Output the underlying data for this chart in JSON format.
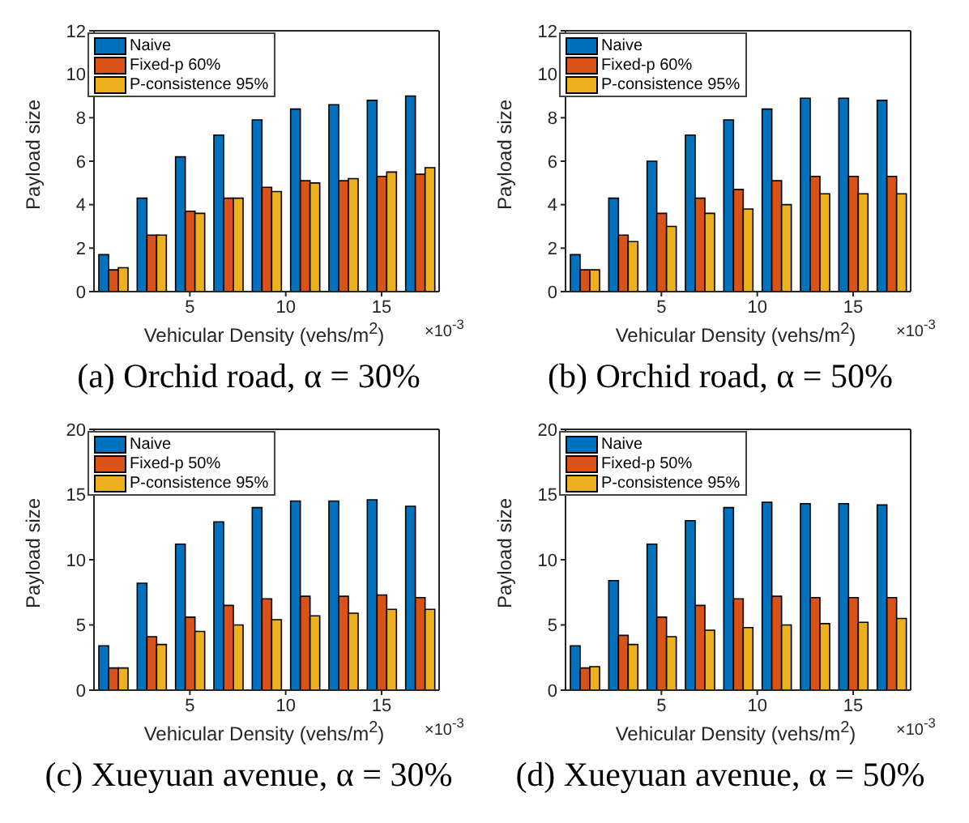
{
  "chart_data": [
    {
      "type": "bar",
      "x": [
        1,
        3,
        5,
        7,
        9,
        11,
        13,
        15,
        17
      ],
      "xlim": [
        0,
        18
      ],
      "xticks": [
        5,
        10,
        15
      ],
      "ylim": [
        0,
        12
      ],
      "yticks": [
        0,
        2,
        4,
        6,
        8,
        10,
        12
      ],
      "xlabel": "Vehicular Density (vehs/m$^{2}$)",
      "ylabel": "Payload size",
      "legend": "top left",
      "grid": false,
      "annotations": [
        "×10$^{-3}$",
        "(a) Orchid road, α = 30%"
      ],
      "series": [
        {
          "name": "Naive",
          "color": "#0072bd",
          "values": [
            1.7,
            4.3,
            6.2,
            7.2,
            7.9,
            8.4,
            8.6,
            8.8,
            9.0
          ]
        },
        {
          "name": "Fixed-p 60%",
          "color": "#d95319",
          "values": [
            1.0,
            2.6,
            3.7,
            4.3,
            4.8,
            5.1,
            5.1,
            5.3,
            5.4
          ]
        },
        {
          "name": "P-consistence 95%",
          "color": "#edb120",
          "values": [
            1.1,
            2.6,
            3.6,
            4.3,
            4.6,
            5.0,
            5.2,
            5.5,
            5.7
          ]
        }
      ]
    },
    {
      "type": "bar",
      "x": [
        1,
        3,
        5,
        7,
        9,
        11,
        13,
        15,
        17
      ],
      "xlim": [
        0,
        18
      ],
      "xticks": [
        5,
        10,
        15
      ],
      "ylim": [
        0,
        12
      ],
      "yticks": [
        0,
        2,
        4,
        6,
        8,
        10,
        12
      ],
      "xlabel": "Vehicular Density (vehs/m$^{2}$)",
      "ylabel": "Payload size",
      "legend": "top left",
      "grid": false,
      "annotations": [
        "×10$^{-3}$",
        "(b) Orchid road, α = 50%"
      ],
      "series": [
        {
          "name": "Naive",
          "color": "#0072bd",
          "values": [
            1.7,
            4.3,
            6.0,
            7.2,
            7.9,
            8.4,
            8.9,
            8.9,
            8.8
          ]
        },
        {
          "name": "Fixed-p 60%",
          "color": "#d95319",
          "values": [
            1.0,
            2.6,
            3.6,
            4.3,
            4.7,
            5.1,
            5.3,
            5.3,
            5.3
          ]
        },
        {
          "name": "P-consistence 95%",
          "color": "#edb120",
          "values": [
            1.0,
            2.3,
            3.0,
            3.6,
            3.8,
            4.0,
            4.5,
            4.5,
            4.5
          ]
        }
      ]
    },
    {
      "type": "bar",
      "x": [
        1,
        3,
        5,
        7,
        9,
        11,
        13,
        15,
        17
      ],
      "xlim": [
        0,
        18
      ],
      "xticks": [
        5,
        10,
        15
      ],
      "ylim": [
        0,
        20
      ],
      "yticks": [
        0,
        5,
        10,
        15,
        20
      ],
      "xlabel": "Vehicular Density (vehs/m$^{2}$)",
      "ylabel": "Payload size",
      "legend": "top left",
      "grid": false,
      "annotations": [
        "×10$^{-3}$",
        "(c) Xueyuan avenue, α = 30%"
      ],
      "series": [
        {
          "name": "Naive",
          "color": "#0072bd",
          "values": [
            3.4,
            8.2,
            11.2,
            12.9,
            14.0,
            14.5,
            14.5,
            14.6,
            14.1
          ]
        },
        {
          "name": "Fixed-p 50%",
          "color": "#d95319",
          "values": [
            1.7,
            4.1,
            5.6,
            6.5,
            7.0,
            7.2,
            7.2,
            7.3,
            7.1
          ]
        },
        {
          "name": "P-consistence 95%",
          "color": "#edb120",
          "values": [
            1.7,
            3.5,
            4.5,
            5.0,
            5.4,
            5.7,
            5.9,
            6.2,
            6.2
          ]
        }
      ]
    },
    {
      "type": "bar",
      "x": [
        1,
        3,
        5,
        7,
        9,
        11,
        13,
        15,
        17
      ],
      "xlim": [
        0,
        18
      ],
      "xticks": [
        5,
        10,
        15
      ],
      "ylim": [
        0,
        20
      ],
      "yticks": [
        0,
        5,
        10,
        15,
        20
      ],
      "xlabel": "Vehicular Density (vehs/m$^{2}$)",
      "ylabel": "Payload size",
      "legend": "top left",
      "grid": false,
      "annotations": [
        "×10$^{-3}$",
        "(d) Xueyuan avenue, α = 50%"
      ],
      "series": [
        {
          "name": "Naive",
          "color": "#0072bd",
          "values": [
            3.4,
            8.4,
            11.2,
            13.0,
            14.0,
            14.4,
            14.3,
            14.3,
            14.2
          ]
        },
        {
          "name": "Fixed-p 50%",
          "color": "#d95319",
          "values": [
            1.7,
            4.2,
            5.6,
            6.5,
            7.0,
            7.2,
            7.1,
            7.1,
            7.1
          ]
        },
        {
          "name": "P-consistence 95%",
          "color": "#edb120",
          "values": [
            1.8,
            3.5,
            4.1,
            4.6,
            4.8,
            5.0,
            5.1,
            5.2,
            5.5
          ]
        }
      ]
    }
  ]
}
